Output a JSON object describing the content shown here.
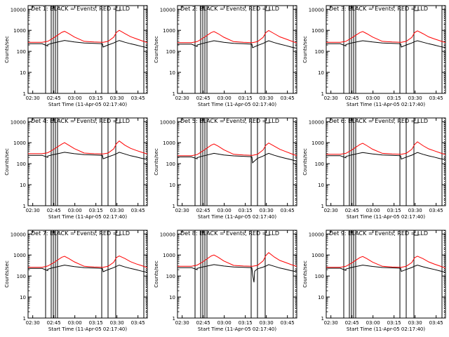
{
  "figure": {
    "colors": {
      "events": "#000000",
      "lld": "#ff0000",
      "background": "#ffffff"
    },
    "y_axis_label": "Counts/sec",
    "x_axis_label": "Start Time (11-Apr-05 02:17:40)",
    "x_tick_labels": [
      "02:30",
      "02:45",
      "03:00",
      "03:15",
      "03:30",
      "03:45"
    ],
    "y_tick_labels": [
      "1",
      "10",
      "100",
      "1000",
      "10000"
    ]
  },
  "chart_data": [
    {
      "type": "line",
      "title": "Det 1: BLACK = Events, RED = LLD",
      "xlabel": "Start Time (11-Apr-05 02:17:40)",
      "ylabel": "Counts/sec",
      "x_unit": "minutes since 02:17:40",
      "xlim": [
        9,
        94
      ],
      "ylim": [
        1,
        15000
      ],
      "y_scale": "log",
      "vertical_lines": [
        21.5,
        25.5,
        27,
        28.5,
        30,
        61.5,
        66,
        71.5,
        91.5
      ],
      "series": [
        {
          "name": "Events",
          "color": "#000000",
          "x": [
            9,
            19,
            23,
            23,
            27,
            35,
            42,
            49,
            56,
            62,
            62.5,
            66,
            70,
            72,
            74,
            78,
            82,
            86,
            90,
            94
          ],
          "values": [
            230,
            230,
            180,
            210,
            250,
            330,
            280,
            250,
            240,
            230,
            160,
            200,
            250,
            290,
            330,
            270,
            230,
            200,
            170,
            150
          ]
        },
        {
          "name": "LLD",
          "color": "#ff0000",
          "x": [
            9,
            19,
            23,
            27,
            33,
            35,
            38,
            42,
            49,
            56,
            62,
            62.5,
            66,
            70,
            72,
            74,
            78,
            82,
            86,
            90,
            94
          ],
          "values": [
            270,
            270,
            300,
            430,
            800,
            900,
            700,
            480,
            300,
            280,
            270,
            270,
            300,
            470,
            800,
            1000,
            700,
            500,
            400,
            320,
            260
          ]
        }
      ]
    },
    {
      "type": "line",
      "title": "Det 2: BLACK = Events, RED = LLD",
      "xlabel": "Start Time (11-Apr-05 02:17:40)",
      "ylabel": "Counts/sec",
      "x_unit": "minutes since 02:17:40",
      "xlim": [
        9,
        94
      ],
      "ylim": [
        1,
        15000
      ],
      "y_scale": "log",
      "vertical_lines": [
        21.5,
        25.5,
        27,
        28.5,
        30,
        61.5,
        66,
        71.5,
        91.5
      ],
      "series": [
        {
          "name": "Events",
          "color": "#000000",
          "x": [
            9,
            19,
            23,
            23,
            27,
            35,
            42,
            49,
            56,
            62,
            62.5,
            66,
            70,
            72,
            74,
            78,
            82,
            86,
            90,
            94
          ],
          "values": [
            220,
            220,
            170,
            200,
            240,
            320,
            270,
            240,
            230,
            220,
            150,
            190,
            240,
            280,
            320,
            260,
            220,
            190,
            160,
            140
          ]
        },
        {
          "name": "LLD",
          "color": "#ff0000",
          "x": [
            9,
            19,
            23,
            27,
            33,
            35,
            38,
            42,
            49,
            56,
            62,
            62.5,
            66,
            70,
            72,
            74,
            78,
            82,
            86,
            90,
            94
          ],
          "values": [
            260,
            260,
            290,
            420,
            780,
            880,
            690,
            470,
            290,
            270,
            260,
            260,
            290,
            460,
            780,
            980,
            690,
            490,
            390,
            310,
            250
          ]
        }
      ]
    },
    {
      "type": "line",
      "title": "Det 3: BLACK = Events, RED = LLD",
      "xlabel": "Start Time (11-Apr-05 02:17:40)",
      "ylabel": "Counts/sec",
      "x_unit": "minutes since 02:17:40",
      "xlim": [
        9,
        94
      ],
      "ylim": [
        1,
        15000
      ],
      "y_scale": "log",
      "vertical_lines": [
        21.5,
        25.5,
        27,
        28.5,
        30,
        61.5,
        66,
        71.5,
        91.5
      ],
      "series": [
        {
          "name": "Events",
          "color": "#000000",
          "x": [
            9,
            19,
            23,
            23,
            27,
            35,
            42,
            49,
            56,
            62,
            62.5,
            66,
            70,
            72,
            74,
            78,
            82,
            86,
            90,
            94
          ],
          "values": [
            230,
            230,
            180,
            210,
            250,
            320,
            280,
            250,
            240,
            230,
            160,
            200,
            250,
            290,
            320,
            270,
            230,
            200,
            170,
            150
          ]
        },
        {
          "name": "LLD",
          "color": "#ff0000",
          "x": [
            9,
            19,
            23,
            27,
            33,
            35,
            38,
            42,
            49,
            56,
            62,
            62.5,
            66,
            70,
            72,
            74,
            78,
            82,
            86,
            90,
            94
          ],
          "values": [
            270,
            270,
            300,
            430,
            780,
            880,
            690,
            480,
            300,
            280,
            270,
            270,
            300,
            460,
            780,
            950,
            690,
            490,
            390,
            320,
            260
          ]
        }
      ]
    },
    {
      "type": "line",
      "title": "Det 4: BLACK = Events, RED = LLD",
      "xlabel": "Start Time (11-Apr-05 02:17:40)",
      "ylabel": "Counts/sec",
      "x_unit": "minutes since 02:17:40",
      "xlim": [
        9,
        94
      ],
      "ylim": [
        1,
        15000
      ],
      "y_scale": "log",
      "vertical_lines": [
        21.5,
        25.5,
        27,
        28.5,
        30,
        61.5,
        66,
        71.5,
        91.5
      ],
      "series": [
        {
          "name": "Events",
          "color": "#000000",
          "x": [
            9,
            19,
            23,
            23,
            27,
            35,
            42,
            49,
            56,
            62,
            62.5,
            66,
            70,
            72,
            74,
            78,
            82,
            86,
            90,
            94
          ],
          "values": [
            250,
            250,
            200,
            230,
            270,
            350,
            300,
            270,
            260,
            250,
            170,
            210,
            260,
            300,
            350,
            290,
            240,
            210,
            180,
            160
          ]
        },
        {
          "name": "LLD",
          "color": "#ff0000",
          "x": [
            9,
            19,
            23,
            27,
            33,
            35,
            38,
            42,
            49,
            56,
            62,
            62.5,
            66,
            70,
            72,
            74,
            78,
            82,
            86,
            90,
            94
          ],
          "values": [
            300,
            300,
            330,
            470,
            850,
            1000,
            760,
            520,
            320,
            300,
            290,
            290,
            320,
            500,
            900,
            1200,
            760,
            540,
            430,
            350,
            290
          ]
        }
      ]
    },
    {
      "type": "line",
      "title": "Det 5: BLACK = Events, RED = LLD",
      "xlabel": "Start Time (11-Apr-05 02:17:40)",
      "ylabel": "Counts/sec",
      "x_unit": "minutes since 02:17:40",
      "xlim": [
        9,
        94
      ],
      "ylim": [
        1,
        15000
      ],
      "y_scale": "log",
      "vertical_lines": [
        21.5,
        25.5,
        27,
        28.5,
        30,
        61.5,
        66,
        71.5,
        91.5
      ],
      "series": [
        {
          "name": "Events",
          "color": "#000000",
          "x": [
            9,
            19,
            23,
            23,
            27,
            35,
            42,
            49,
            56,
            62,
            62.5,
            66,
            70,
            72,
            74,
            78,
            82,
            86,
            90,
            94
          ],
          "values": [
            210,
            210,
            170,
            195,
            230,
            310,
            260,
            235,
            225,
            215,
            110,
            180,
            230,
            270,
            310,
            250,
            210,
            180,
            155,
            130
          ]
        },
        {
          "name": "LLD",
          "color": "#ff0000",
          "x": [
            9,
            19,
            23,
            27,
            33,
            35,
            38,
            42,
            49,
            56,
            62,
            62.5,
            66,
            70,
            72,
            74,
            78,
            82,
            86,
            90,
            94
          ],
          "values": [
            240,
            240,
            270,
            400,
            760,
            870,
            680,
            460,
            280,
            260,
            250,
            250,
            280,
            450,
            760,
            960,
            680,
            480,
            380,
            300,
            240
          ]
        }
      ]
    },
    {
      "type": "line",
      "title": "Det 6: BLACK = Events, RED = LLD",
      "xlabel": "Start Time (11-Apr-05 02:17:40)",
      "ylabel": "Counts/sec",
      "x_unit": "minutes since 02:17:40",
      "xlim": [
        9,
        94
      ],
      "ylim": [
        1,
        15000
      ],
      "y_scale": "log",
      "vertical_lines": [
        21.5,
        25.5,
        27,
        28.5,
        30,
        61.5,
        66,
        71.5,
        91.5
      ],
      "series": [
        {
          "name": "Events",
          "color": "#000000",
          "x": [
            9,
            19,
            23,
            23,
            27,
            35,
            42,
            49,
            56,
            62,
            62.5,
            66,
            70,
            72,
            74,
            78,
            82,
            86,
            90,
            94
          ],
          "values": [
            240,
            240,
            190,
            220,
            260,
            340,
            290,
            260,
            250,
            240,
            165,
            205,
            255,
            295,
            340,
            280,
            235,
            205,
            175,
            155
          ]
        },
        {
          "name": "LLD",
          "color": "#ff0000",
          "x": [
            9,
            19,
            23,
            27,
            33,
            35,
            38,
            42,
            49,
            56,
            62,
            62.5,
            66,
            70,
            72,
            74,
            78,
            82,
            86,
            90,
            94
          ],
          "values": [
            280,
            280,
            310,
            440,
            820,
            930,
            720,
            490,
            310,
            290,
            280,
            280,
            310,
            480,
            820,
            1100,
            720,
            510,
            410,
            330,
            270
          ]
        }
      ]
    },
    {
      "type": "line",
      "title": "Det 7: BLACK = Events, RED = LLD",
      "xlabel": "Start Time (11-Apr-05 02:17:40)",
      "ylabel": "Counts/sec",
      "x_unit": "minutes since 02:17:40",
      "xlim": [
        9,
        94
      ],
      "ylim": [
        1,
        15000
      ],
      "y_scale": "log",
      "vertical_lines": [
        21.5,
        25.5,
        27,
        28.5,
        30,
        61.5,
        66,
        71.5,
        91.5
      ],
      "series": [
        {
          "name": "Events",
          "color": "#000000",
          "x": [
            9,
            19,
            23,
            23,
            27,
            35,
            42,
            49,
            56,
            62,
            62.5,
            66,
            70,
            72,
            74,
            78,
            82,
            86,
            90,
            94
          ],
          "values": [
            230,
            230,
            180,
            210,
            250,
            330,
            280,
            250,
            240,
            230,
            160,
            200,
            250,
            290,
            330,
            270,
            230,
            200,
            170,
            150
          ]
        },
        {
          "name": "LLD",
          "color": "#ff0000",
          "x": [
            9,
            19,
            23,
            27,
            33,
            35,
            38,
            42,
            49,
            56,
            62,
            62.5,
            66,
            70,
            72,
            74,
            78,
            82,
            86,
            90,
            94
          ],
          "values": [
            260,
            260,
            300,
            420,
            780,
            870,
            680,
            470,
            290,
            270,
            260,
            260,
            290,
            450,
            760,
            900,
            680,
            480,
            380,
            310,
            250
          ]
        }
      ]
    },
    {
      "type": "line",
      "title": "Det 8: BLACK = Events, RED = LLD",
      "xlabel": "Start Time (11-Apr-05 02:17:40)",
      "ylabel": "Counts/sec",
      "x_unit": "minutes since 02:17:40",
      "xlim": [
        9,
        94
      ],
      "ylim": [
        1,
        15000
      ],
      "y_scale": "log",
      "vertical_lines": [
        21.5,
        25.5,
        27,
        28.5,
        30,
        61.5,
        66,
        71.5,
        91.5
      ],
      "series": [
        {
          "name": "Events",
          "color": "#000000",
          "x": [
            9,
            19,
            23,
            23,
            27,
            35,
            42,
            49,
            56,
            62,
            62.5,
            63.5,
            64,
            66,
            70,
            72,
            74,
            78,
            82,
            86,
            90,
            94
          ],
          "values": [
            250,
            250,
            200,
            230,
            270,
            350,
            300,
            270,
            260,
            250,
            120,
            50,
            170,
            220,
            265,
            300,
            350,
            290,
            240,
            210,
            180,
            160
          ]
        },
        {
          "name": "LLD",
          "color": "#ff0000",
          "x": [
            9,
            19,
            23,
            27,
            33,
            35,
            38,
            42,
            49,
            56,
            62,
            62.5,
            66,
            70,
            72,
            74,
            78,
            82,
            86,
            90,
            94
          ],
          "values": [
            290,
            290,
            330,
            470,
            900,
            1000,
            780,
            520,
            320,
            300,
            290,
            290,
            320,
            520,
            950,
            1300,
            800,
            550,
            440,
            350,
            290
          ]
        }
      ]
    },
    {
      "type": "line",
      "title": "Det 9: BLACK = Events, RED = LLD",
      "xlabel": "Start Time (11-Apr-05 02:17:40)",
      "ylabel": "Counts/sec",
      "x_unit": "minutes since 02:17:40",
      "xlim": [
        9,
        94
      ],
      "ylim": [
        1,
        15000
      ],
      "y_scale": "log",
      "vertical_lines": [
        21.5,
        25.5,
        27,
        28.5,
        30,
        61.5,
        66,
        71.5,
        91.5
      ],
      "series": [
        {
          "name": "Events",
          "color": "#000000",
          "x": [
            9,
            19,
            23,
            23,
            27,
            35,
            42,
            49,
            56,
            62,
            62.5,
            66,
            70,
            72,
            74,
            78,
            82,
            86,
            90,
            94
          ],
          "values": [
            235,
            235,
            185,
            215,
            255,
            330,
            285,
            255,
            245,
            235,
            165,
            205,
            255,
            295,
            330,
            275,
            235,
            205,
            175,
            150
          ]
        },
        {
          "name": "LLD",
          "color": "#ff0000",
          "x": [
            9,
            19,
            23,
            27,
            33,
            35,
            38,
            42,
            49,
            56,
            62,
            62.5,
            66,
            70,
            72,
            74,
            78,
            82,
            86,
            90,
            94
          ],
          "values": [
            260,
            260,
            290,
            410,
            760,
            850,
            670,
            460,
            290,
            270,
            260,
            260,
            290,
            440,
            740,
            880,
            670,
            470,
            370,
            300,
            240
          ]
        }
      ]
    }
  ]
}
